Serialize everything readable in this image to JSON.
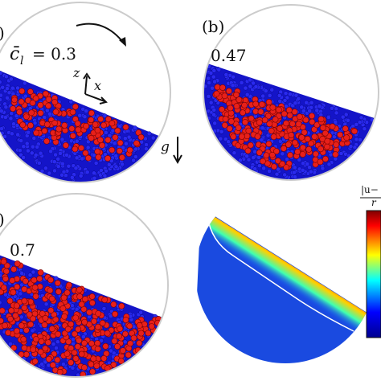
{
  "panel_a": {
    "label": ")",
    "fraction_symbol": "c̄",
    "fraction_subscript": "l",
    "fraction_value": "= 0.3",
    "axis_z": "z",
    "axis_x": "x",
    "gravity": "g"
  },
  "panel_b": {
    "label": "(b)",
    "fraction_value": "0.47"
  },
  "panel_c": {
    "label": ")",
    "fraction_value": "0.7"
  },
  "colorbar": {
    "label_top": "|u−",
    "label_bottom": "r"
  }
}
